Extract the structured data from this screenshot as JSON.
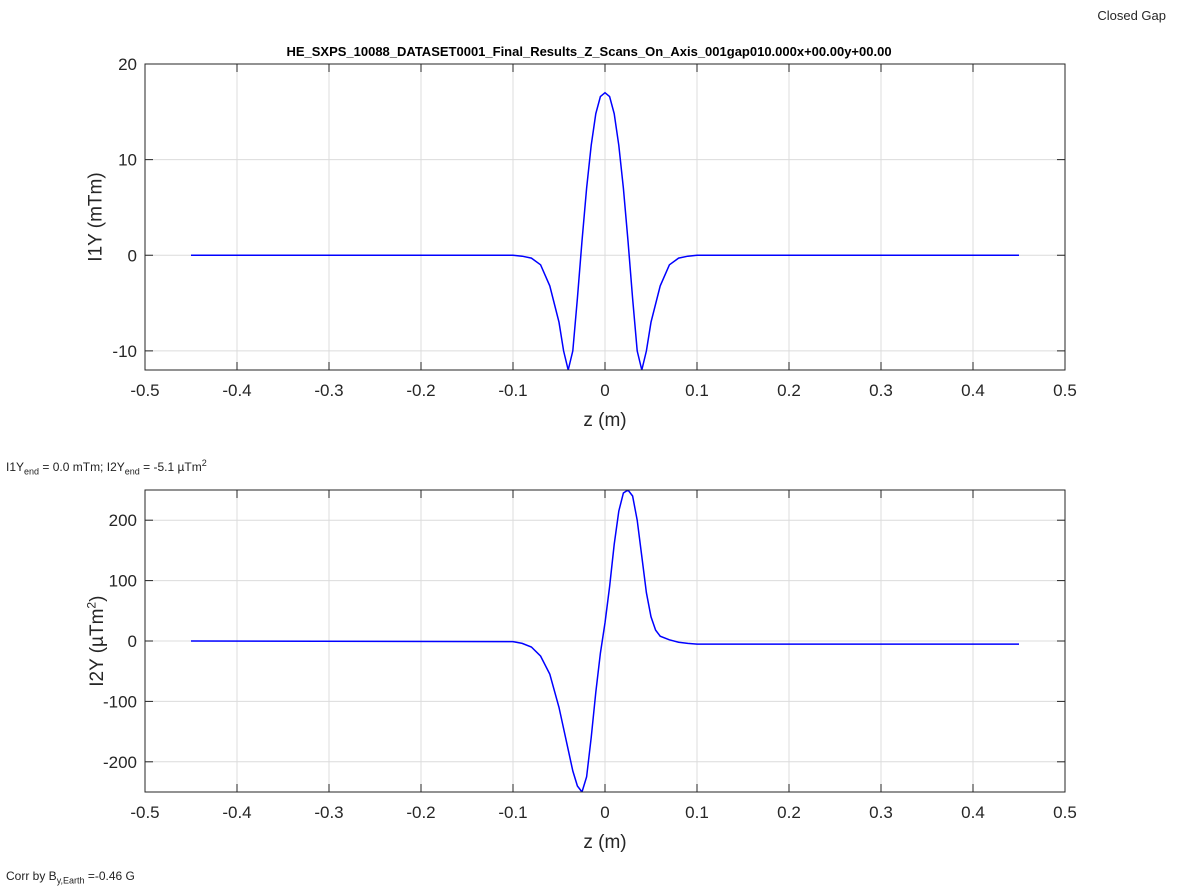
{
  "header": {
    "corner_label": "Closed Gap",
    "title": "HE_SXPS_10088_DATASET0001_Final_Results_Z_Scans_On_Axis_001gap010.000x+00.00y+00.00"
  },
  "notes": {
    "integral_summary": {
      "p1": "I1Y",
      "s1": "end",
      "p2": " = 0.0 mTm; I2Y",
      "s2": "end",
      "p3": " = -5.1 µTm",
      "sup": "2"
    },
    "earth_correction": {
      "p1": "Corr by B",
      "s1": "y,Earth",
      "p2": " =-0.46 G"
    }
  },
  "colors": {
    "line": "#0000ff",
    "grid": "#dcdcdc",
    "axis": "#262626"
  },
  "chart_data": [
    {
      "type": "line",
      "title": "HE_SXPS_10088_DATASET0001_Final_Results_Z_Scans_On_Axis_001gap010.000x+00.00y+00.00",
      "xlabel": "z (m)",
      "ylabel": "I1Y (mTm)",
      "ylabel_parts": {
        "main": "I1Y (mTm)",
        "sup": ""
      },
      "xlim": [
        -0.5,
        0.5
      ],
      "ylim": [
        -12,
        20
      ],
      "xticks": [
        -0.5,
        -0.4,
        -0.3,
        -0.2,
        -0.1,
        0,
        0.1,
        0.2,
        0.3,
        0.4,
        0.5
      ],
      "xtick_labels": [
        "-0.5",
        "-0.4",
        "-0.3",
        "-0.2",
        "-0.1",
        "0",
        "0.1",
        "0.2",
        "0.3",
        "0.4",
        "0.5"
      ],
      "yticks": [
        -10,
        0,
        10,
        20
      ],
      "ytick_labels": [
        "-10",
        "0",
        "10",
        "20"
      ],
      "grid": true,
      "series": [
        {
          "x": [
            -0.45,
            -0.1,
            -0.09,
            -0.08,
            -0.07,
            -0.06,
            -0.05,
            -0.045,
            -0.04,
            -0.035,
            -0.03,
            -0.025,
            -0.02,
            -0.015,
            -0.01,
            -0.005,
            0,
            0.005,
            0.01,
            0.015,
            0.02,
            0.025,
            0.03,
            0.035,
            0.04,
            0.045,
            0.05,
            0.06,
            0.07,
            0.08,
            0.09,
            0.1,
            0.45
          ],
          "y": [
            0,
            0,
            -0.1,
            -0.3,
            -1.0,
            -3.2,
            -7.0,
            -10.0,
            -12.0,
            -10.0,
            -4.5,
            1.5,
            7.0,
            11.5,
            14.8,
            16.6,
            17.0,
            16.6,
            14.8,
            11.5,
            7.0,
            1.5,
            -4.5,
            -10.0,
            -12.0,
            -10.0,
            -7.0,
            -3.2,
            -1.0,
            -0.3,
            -0.1,
            0,
            0
          ]
        }
      ]
    },
    {
      "type": "line",
      "title": "",
      "xlabel": "z (m)",
      "ylabel": "I2Y (µTm2)",
      "ylabel_parts": {
        "main": "I2Y (µTm",
        "sup": "2",
        "end": ")"
      },
      "xlim": [
        -0.5,
        0.5
      ],
      "ylim": [
        -250,
        250
      ],
      "xticks": [
        -0.5,
        -0.4,
        -0.3,
        -0.2,
        -0.1,
        0,
        0.1,
        0.2,
        0.3,
        0.4,
        0.5
      ],
      "xtick_labels": [
        "-0.5",
        "-0.4",
        "-0.3",
        "-0.2",
        "-0.1",
        "0",
        "0.1",
        "0.2",
        "0.3",
        "0.4",
        "0.5"
      ],
      "yticks": [
        -200,
        -100,
        0,
        100,
        200
      ],
      "ytick_labels": [
        "-200",
        "-100",
        "0",
        "100",
        "200"
      ],
      "grid": true,
      "series": [
        {
          "x": [
            -0.45,
            -0.1,
            -0.09,
            -0.08,
            -0.07,
            -0.06,
            -0.05,
            -0.04,
            -0.035,
            -0.03,
            -0.025,
            -0.02,
            -0.015,
            -0.01,
            -0.005,
            0,
            0.005,
            0.01,
            0.015,
            0.02,
            0.025,
            0.03,
            0.035,
            0.04,
            0.045,
            0.05,
            0.055,
            0.06,
            0.07,
            0.08,
            0.09,
            0.1,
            0.45
          ],
          "y": [
            0,
            -1,
            -4,
            -10,
            -25,
            -55,
            -110,
            -180,
            -215,
            -240,
            -250,
            -225,
            -160,
            -85,
            -20,
            30,
            90,
            160,
            215,
            245,
            250,
            240,
            200,
            140,
            80,
            40,
            18,
            8,
            2,
            -2,
            -4,
            -5.1,
            -5.1
          ]
        }
      ]
    }
  ]
}
